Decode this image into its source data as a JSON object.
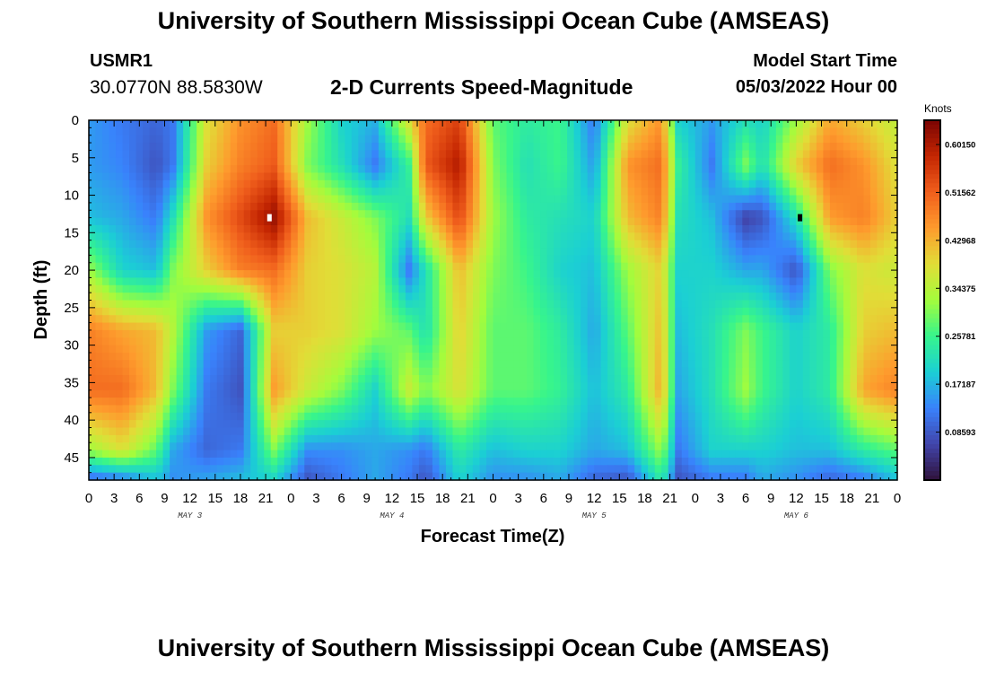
{
  "header": {
    "title": "University of Southern Mississippi Ocean Cube (AMSEAS)",
    "station_id": "USMR1",
    "station_coords": "30.0770N  88.5830W",
    "chart_title": "2-D Currents Speed-Magnitude",
    "model_start_label": "Model Start Time",
    "model_start_value": "05/03/2022 Hour 00"
  },
  "footer": {
    "title": "University of Southern Mississippi Ocean Cube (AMSEAS)"
  },
  "chart_data": {
    "type": "heatmap",
    "title": "2-D Currents Speed-Magnitude",
    "xlabel": "Forecast Time(Z)",
    "ylabel": "Depth (ft)",
    "x_ticks": [
      "0",
      "3",
      "6",
      "9",
      "12",
      "15",
      "18",
      "21",
      "0",
      "3",
      "6",
      "9",
      "12",
      "15",
      "18",
      "21",
      "0",
      "3",
      "6",
      "9",
      "12",
      "15",
      "18",
      "21",
      "0",
      "3",
      "6",
      "9",
      "12",
      "15",
      "18",
      "21",
      "0"
    ],
    "x_range_hours": [
      0,
      96
    ],
    "day_labels": [
      "MAY 3",
      "MAY 4",
      "MAY 5",
      "MAY 6"
    ],
    "y_ticks": [
      0,
      5,
      10,
      15,
      20,
      25,
      30,
      35,
      40,
      45
    ],
    "ylim": [
      0,
      48
    ],
    "colorbar": {
      "unit": "Knots",
      "labels": [
        "0.60150",
        "0.51562",
        "0.42968",
        "0.34375",
        "0.25781",
        "0.17187",
        "0.08593"
      ],
      "label_values": [
        0.6015,
        0.51562,
        0.42968,
        0.34375,
        0.25781,
        0.17187,
        0.08593
      ],
      "range": [
        0.0,
        0.645
      ],
      "colormap": "turbo"
    },
    "depths_ft": [
      0,
      6,
      13,
      20,
      28,
      36,
      44,
      48
    ],
    "times_h": [
      0,
      4,
      8,
      10,
      14,
      18,
      22,
      26,
      30,
      34,
      38,
      40,
      44,
      48,
      52,
      56,
      60,
      64,
      68,
      70,
      74,
      78,
      80,
      84,
      88,
      92,
      96
    ],
    "speed_knots": [
      [
        0.15,
        0.12,
        0.1,
        0.12,
        0.38,
        0.46,
        0.5,
        0.32,
        0.2,
        0.17,
        0.38,
        0.5,
        0.55,
        0.28,
        0.24,
        0.26,
        0.12,
        0.38,
        0.46,
        0.2,
        0.15,
        0.22,
        0.2,
        0.32,
        0.44,
        0.4,
        0.35
      ],
      [
        0.15,
        0.13,
        0.08,
        0.12,
        0.4,
        0.48,
        0.52,
        0.3,
        0.22,
        0.12,
        0.25,
        0.52,
        0.6,
        0.3,
        0.22,
        0.26,
        0.15,
        0.46,
        0.5,
        0.25,
        0.12,
        0.3,
        0.22,
        0.4,
        0.5,
        0.46,
        0.38
      ],
      [
        0.18,
        0.16,
        0.12,
        0.22,
        0.46,
        0.54,
        0.62,
        0.42,
        0.36,
        0.3,
        0.22,
        0.4,
        0.54,
        0.32,
        0.24,
        0.22,
        0.2,
        0.42,
        0.48,
        0.22,
        0.18,
        0.06,
        0.08,
        0.22,
        0.45,
        0.48,
        0.4
      ],
      [
        0.32,
        0.2,
        0.18,
        0.3,
        0.4,
        0.48,
        0.5,
        0.4,
        0.38,
        0.34,
        0.12,
        0.22,
        0.42,
        0.3,
        0.26,
        0.2,
        0.18,
        0.32,
        0.4,
        0.2,
        0.2,
        0.16,
        0.16,
        0.08,
        0.3,
        0.38,
        0.36
      ],
      [
        0.48,
        0.44,
        0.42,
        0.34,
        0.15,
        0.1,
        0.4,
        0.4,
        0.38,
        0.32,
        0.28,
        0.22,
        0.4,
        0.28,
        0.28,
        0.24,
        0.16,
        0.28,
        0.42,
        0.18,
        0.22,
        0.3,
        0.26,
        0.2,
        0.24,
        0.4,
        0.42
      ],
      [
        0.5,
        0.5,
        0.42,
        0.3,
        0.12,
        0.08,
        0.45,
        0.36,
        0.3,
        0.2,
        0.36,
        0.3,
        0.38,
        0.28,
        0.28,
        0.25,
        0.18,
        0.24,
        0.44,
        0.16,
        0.22,
        0.32,
        0.26,
        0.2,
        0.24,
        0.44,
        0.48
      ],
      [
        0.32,
        0.38,
        0.28,
        0.16,
        0.1,
        0.12,
        0.3,
        0.14,
        0.14,
        0.16,
        0.14,
        0.12,
        0.24,
        0.18,
        0.2,
        0.2,
        0.16,
        0.18,
        0.32,
        0.12,
        0.2,
        0.2,
        0.2,
        0.18,
        0.18,
        0.24,
        0.28
      ],
      [
        0.1,
        0.12,
        0.18,
        0.14,
        0.16,
        0.18,
        0.2,
        0.08,
        0.12,
        0.16,
        0.12,
        0.08,
        0.2,
        0.14,
        0.14,
        0.16,
        0.1,
        0.08,
        0.24,
        0.08,
        0.12,
        0.12,
        0.16,
        0.14,
        0.1,
        0.12,
        0.18
      ]
    ],
    "markers": [
      {
        "time_h": 21.5,
        "depth_ft": 13,
        "color": "#ffffff"
      },
      {
        "time_h": 84.5,
        "depth_ft": 13,
        "color": "#000000"
      }
    ]
  }
}
